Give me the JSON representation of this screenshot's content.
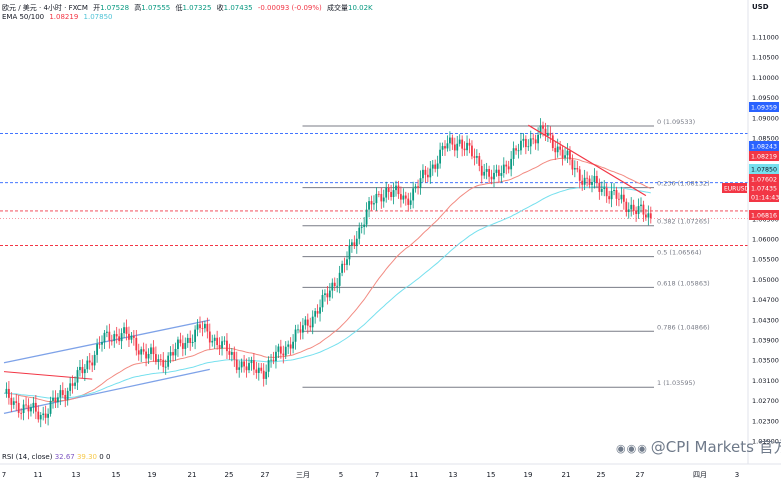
{
  "header": {
    "symbol": "欧元 / 美元 · 4小时 · FXCM",
    "open_label": "开",
    "open": "1.07528",
    "high_label": "高",
    "high": "1.07555",
    "low_label": "低",
    "low": "1.07325",
    "close_label": "收",
    "close": "1.07435",
    "change": "-0.00093 (-0.09%)",
    "volume_label": "成交量",
    "volume": "10.02K",
    "ema_label": "EMA 50/100",
    "ema50": "1.08219",
    "ema100": "1.07850",
    "currency": "USD"
  },
  "rsi": {
    "label": "RSI (14, close)",
    "value": "32.67",
    "value2": "39.30",
    "z1": "0",
    "z2": "0"
  },
  "watermark": "@CPI Markets 官方",
  "colors": {
    "up": "#089981",
    "down": "#f23645",
    "ema50": "#f28b82",
    "ema100": "#76e0ee",
    "channel": "#7ea2e8",
    "fib": "#787b86",
    "blue_dash": "#2962ff",
    "red_dash": "#f23645"
  },
  "chart_data": {
    "type": "candlestick",
    "symbol": "EURUSD",
    "ylim": [
      1.0185,
      1.1185
    ],
    "y_ticks": [
      "1.11000",
      "1.10500",
      "1.10000",
      "1.09500",
      "1.09000",
      "1.08500",
      "1.08000",
      "1.07500",
      "1.07000",
      "1.06500",
      "1.06000",
      "1.05500",
      "1.05000",
      "1.04700",
      "1.04300",
      "1.03900",
      "1.03500",
      "1.03100",
      "1.02700",
      "1.02300",
      "1.01900"
    ],
    "x_ticks": [
      "7",
      "11",
      "13",
      "15",
      "19",
      "21",
      "25",
      "27",
      "三月",
      "5",
      "7",
      "11",
      "13",
      "15",
      "19",
      "21",
      "25",
      "27",
      "四月",
      "3"
    ],
    "fib_levels": [
      {
        "label": "0 (1.09533)",
        "value": 1.09533
      },
      {
        "label": "0.236 (1.08132)",
        "value": 1.08132
      },
      {
        "label": "0.382 (1.07265)",
        "value": 1.07265
      },
      {
        "label": "0.5 (1.06564)",
        "value": 1.06564
      },
      {
        "label": "0.618 (1.05863)",
        "value": 1.05863
      },
      {
        "label": "0.786 (1.04866)",
        "value": 1.04866
      },
      {
        "label": "1 (1.03595)",
        "value": 1.03595
      }
    ],
    "price_tags": [
      {
        "value": "1.09359",
        "color": "#2962ff"
      },
      {
        "value": "1.08243",
        "color": "#2962ff"
      },
      {
        "value": "1.08219",
        "color": "#f23645"
      },
      {
        "value": "1.07850",
        "color": "#76e0ee"
      },
      {
        "value": "1.07602",
        "color": "#f23645"
      },
      {
        "value": "EURUSD",
        "color": "#f23645"
      },
      {
        "value": "1.07435",
        "color": "#f23645"
      },
      {
        "value": "01:14:43",
        "color": "#f23645"
      },
      {
        "value": "1.06816",
        "color": "#f23645"
      }
    ],
    "dashed_lines": [
      {
        "value": 1.09359,
        "color": "#2962ff"
      },
      {
        "value": 1.08243,
        "color": "#2962ff"
      },
      {
        "value": 1.07602,
        "color": "#f23645"
      },
      {
        "value": 1.06816,
        "color": "#f23645"
      }
    ],
    "last_price": 1.07435,
    "anchors": [
      [
        0,
        1.0338
      ],
      [
        8,
        1.0312
      ],
      [
        16,
        1.0298
      ],
      [
        24,
        1.0345
      ],
      [
        32,
        1.0395
      ],
      [
        40,
        1.0465
      ],
      [
        48,
        1.0485
      ],
      [
        56,
        1.0445
      ],
      [
        64,
        1.0415
      ],
      [
        72,
        1.0452
      ],
      [
        80,
        1.0495
      ],
      [
        88,
        1.046
      ],
      [
        94,
        1.0422
      ],
      [
        100,
        1.0402
      ],
      [
        106,
        1.0398
      ],
      [
        112,
        1.0435
      ],
      [
        120,
        1.048
      ],
      [
        130,
        1.055
      ],
      [
        140,
        1.065
      ],
      [
        148,
        1.076
      ],
      [
        156,
        1.081
      ],
      [
        164,
        1.0785
      ],
      [
        172,
        1.084
      ],
      [
        180,
        1.0905
      ],
      [
        186,
        1.092
      ],
      [
        192,
        1.088
      ],
      [
        200,
        1.083
      ],
      [
        208,
        1.089
      ],
      [
        214,
        1.092
      ],
      [
        220,
        1.094
      ],
      [
        226,
        1.0905
      ],
      [
        232,
        1.0862
      ],
      [
        238,
        1.0825
      ],
      [
        244,
        1.0815
      ],
      [
        250,
        1.0788
      ],
      [
        256,
        1.077
      ],
      [
        261,
        1.0752
      ],
      [
        264,
        1.07435
      ]
    ],
    "fib_anchor_index": 130
  }
}
